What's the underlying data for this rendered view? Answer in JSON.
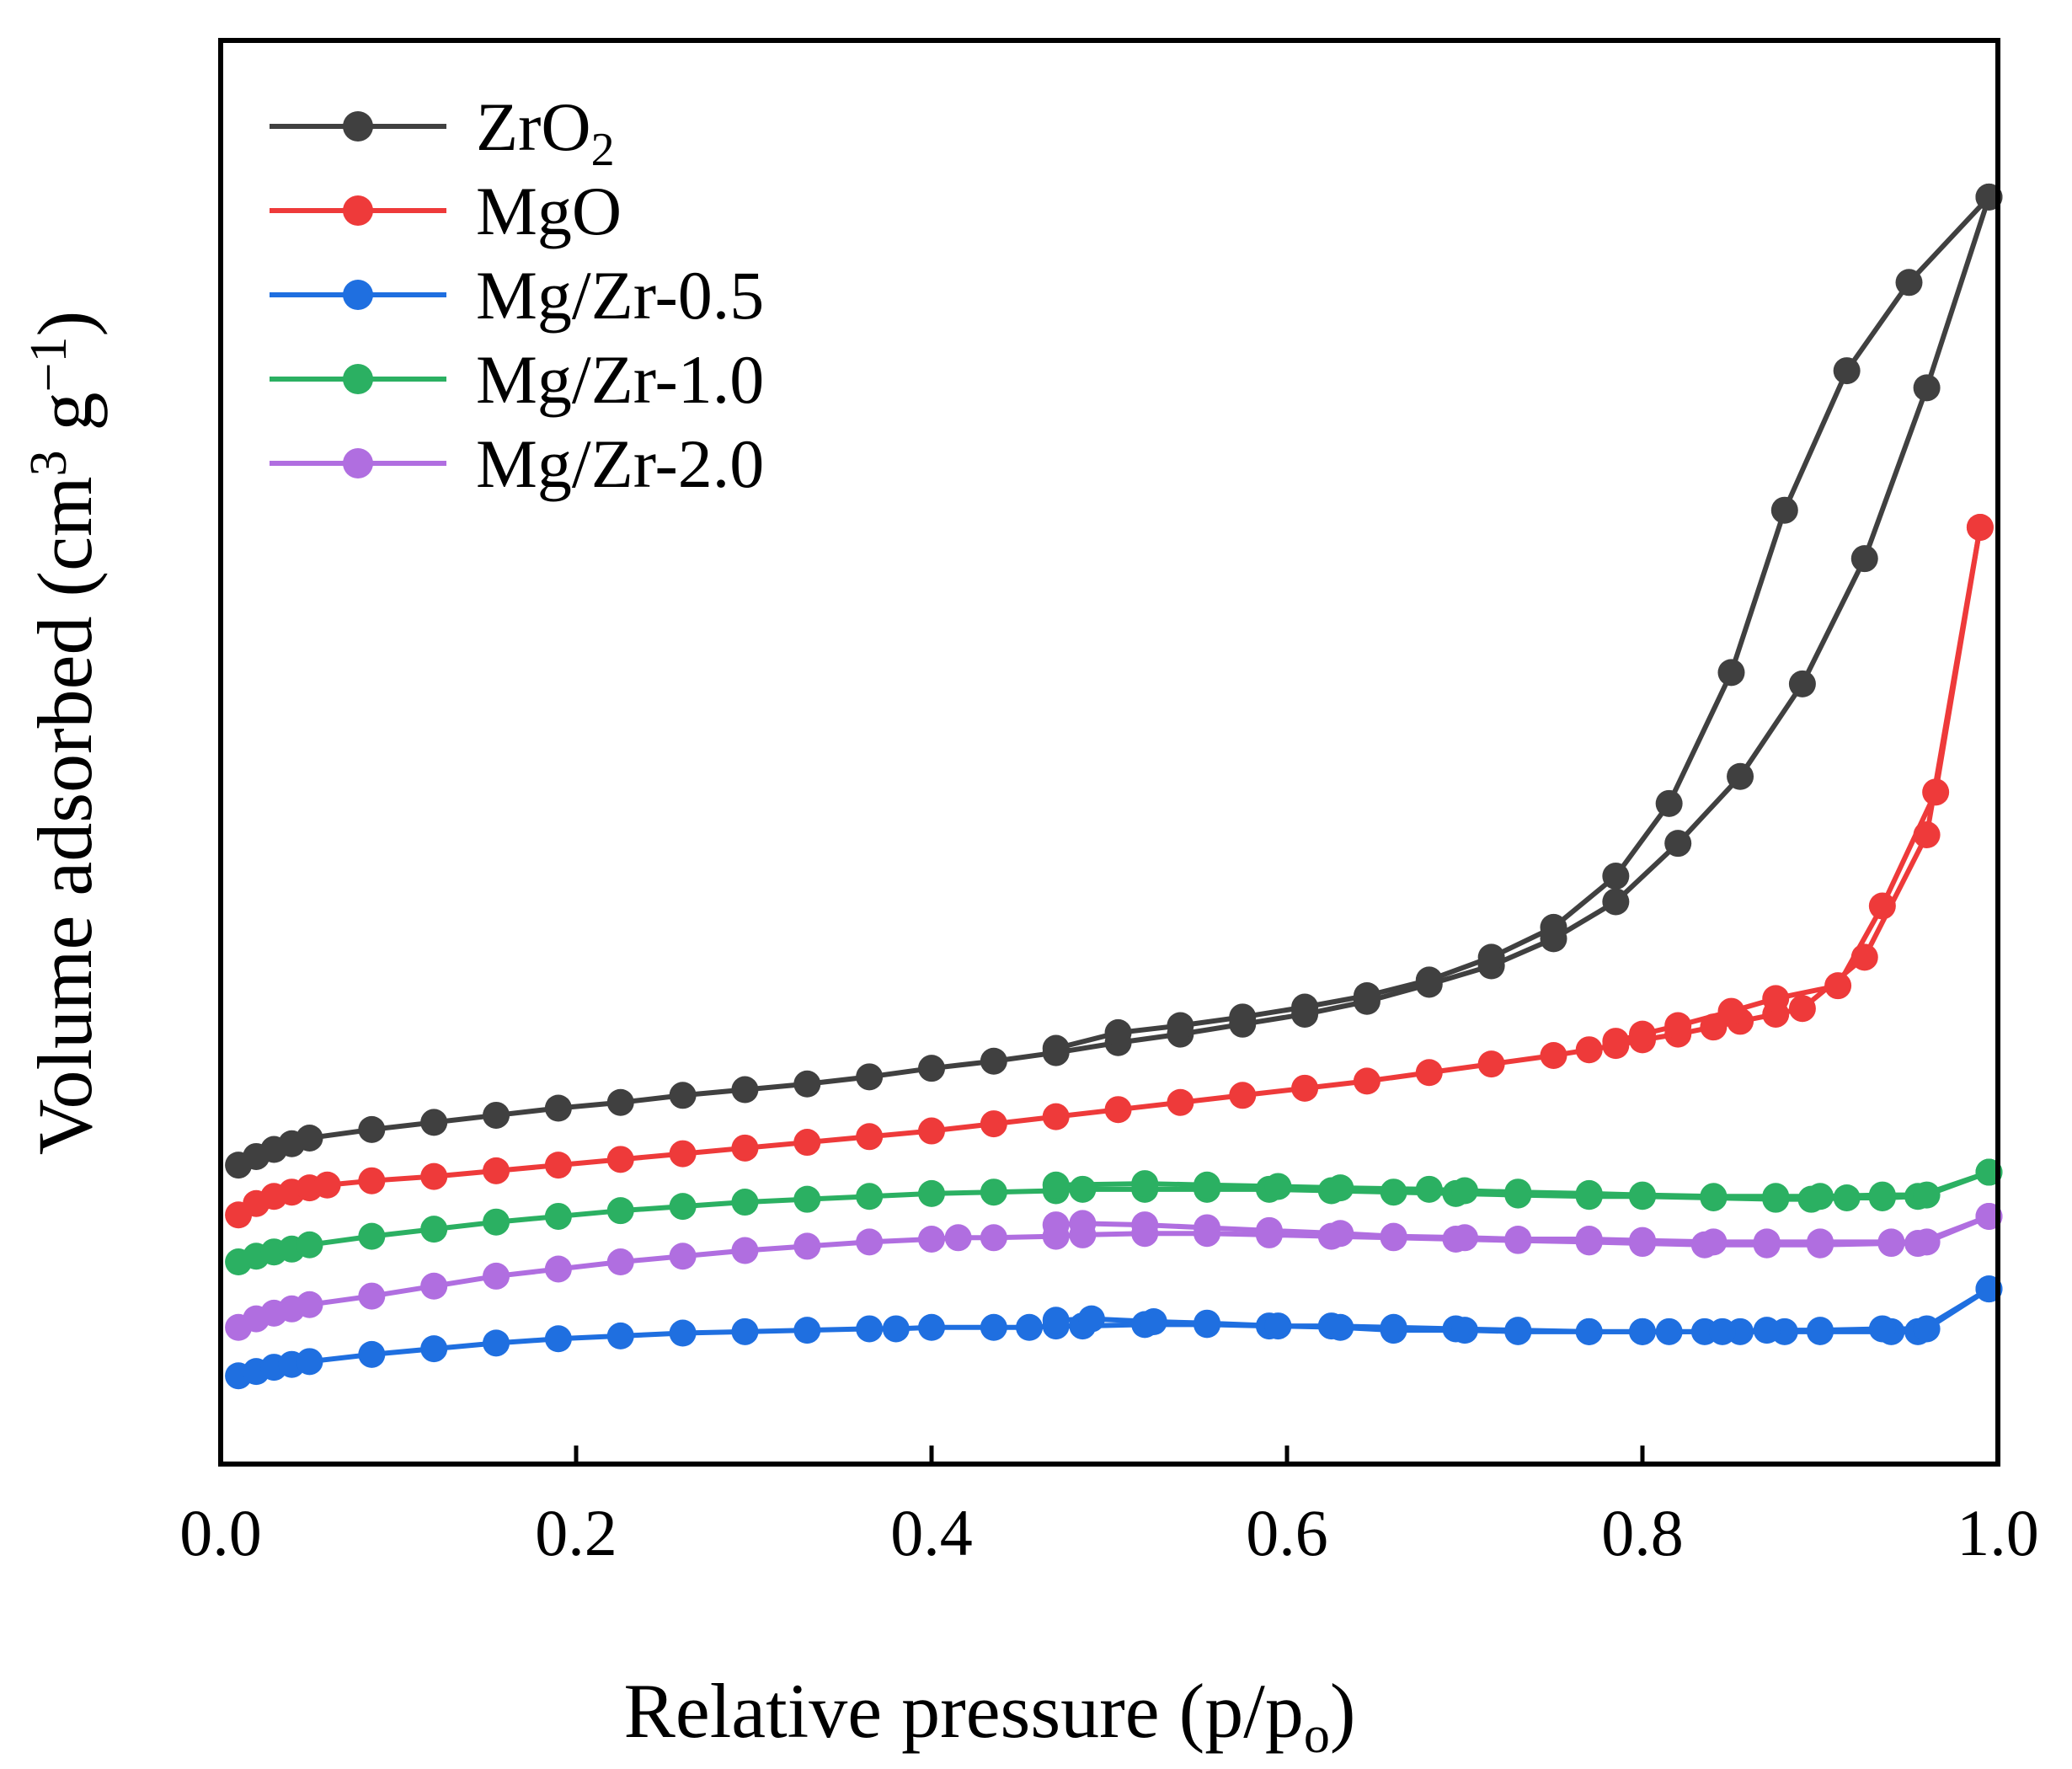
{
  "chart_data": {
    "type": "line",
    "title": "",
    "xlabel": "Relative pressure (p/p",
    "xlabel_sub": "o",
    "xlabel_close": ")",
    "ylabel": "Volume adsorbed (cm",
    "ylabel_sup": "3",
    "ylabel_mid": " g",
    "ylabel_sup2": "−1",
    "ylabel_close": ")",
    "xlim": [
      0.0,
      1.0
    ],
    "ylim": [
      0,
      100
    ],
    "xticks": [
      "0.0",
      "0.2",
      "0.4",
      "0.6",
      "0.8",
      "1.0"
    ],
    "xtick_values": [
      0.0,
      0.2,
      0.4,
      0.6,
      0.8,
      1.0
    ],
    "legend_position": "top-left",
    "series": [
      {
        "name": "ZrO",
        "name_sub": "2",
        "color": "#404040",
        "adsorption": {
          "x": [
            0.01,
            0.02,
            0.03,
            0.04,
            0.05,
            0.085,
            0.12,
            0.155,
            0.19,
            0.225,
            0.26,
            0.295,
            0.33,
            0.365,
            0.4,
            0.435,
            0.47,
            0.505,
            0.54,
            0.575,
            0.61,
            0.645,
            0.68,
            0.715,
            0.75,
            0.785,
            0.82,
            0.855,
            0.89,
            0.925,
            0.96,
            0.995
          ],
          "y": [
            21.0,
            21.6,
            22.1,
            22.5,
            22.9,
            23.5,
            24.0,
            24.5,
            25.0,
            25.4,
            25.9,
            26.3,
            26.7,
            27.2,
            27.8,
            28.3,
            28.9,
            29.6,
            30.2,
            30.9,
            31.6,
            32.5,
            33.7,
            35.0,
            36.9,
            39.5,
            43.6,
            48.3,
            54.8,
            63.6,
            75.6,
            89.0
          ]
        },
        "desorption": {
          "x": [
            0.995,
            0.95,
            0.915,
            0.88,
            0.85,
            0.815,
            0.785,
            0.75,
            0.715,
            0.68,
            0.645,
            0.61,
            0.575,
            0.54,
            0.505,
            0.47
          ],
          "y": [
            89.0,
            83.0,
            76.8,
            67.0,
            55.6,
            46.4,
            41.3,
            37.7,
            35.6,
            34.0,
            32.9,
            32.1,
            31.4,
            30.8,
            30.3,
            29.2
          ]
        }
      },
      {
        "name": "MgO",
        "color": "#ee3a3a",
        "adsorption": {
          "x": [
            0.01,
            0.02,
            0.03,
            0.04,
            0.05,
            0.06,
            0.085,
            0.12,
            0.155,
            0.19,
            0.225,
            0.26,
            0.295,
            0.33,
            0.365,
            0.4,
            0.435,
            0.47,
            0.505,
            0.54,
            0.575,
            0.61,
            0.645,
            0.68,
            0.715,
            0.75,
            0.77,
            0.785,
            0.8,
            0.82,
            0.84,
            0.855,
            0.875,
            0.89,
            0.925,
            0.96,
            0.99
          ],
          "y": [
            17.5,
            18.3,
            18.8,
            19.1,
            19.4,
            19.6,
            19.9,
            20.2,
            20.6,
            21.0,
            21.4,
            21.8,
            22.2,
            22.6,
            23.0,
            23.4,
            23.9,
            24.4,
            24.9,
            25.4,
            25.9,
            26.4,
            26.9,
            27.5,
            28.1,
            28.7,
            29.1,
            29.4,
            29.8,
            30.2,
            30.7,
            31.1,
            31.6,
            32.0,
            35.6,
            44.2,
            65.8
          ]
        },
        "desorption": {
          "x": [
            0.99,
            0.965,
            0.935,
            0.91,
            0.875,
            0.85,
            0.82,
            0.8,
            0.785
          ],
          "y": [
            65.8,
            47.2,
            39.2,
            33.6,
            32.7,
            31.8,
            30.8,
            30.2,
            29.7
          ]
        }
      },
      {
        "name": "Mg/Zr-0.5",
        "color": "#1f6fe0",
        "adsorption": {
          "x": [
            0.01,
            0.02,
            0.03,
            0.04,
            0.05,
            0.085,
            0.12,
            0.155,
            0.19,
            0.225,
            0.26,
            0.295,
            0.33,
            0.365,
            0.38,
            0.4,
            0.435,
            0.455,
            0.47,
            0.485,
            0.52,
            0.555,
            0.59,
            0.625,
            0.66,
            0.695,
            0.73,
            0.77,
            0.8,
            0.815,
            0.835,
            0.855,
            0.88,
            0.9,
            0.94,
            0.955,
            0.995
          ],
          "y": [
            6.2,
            6.5,
            6.8,
            7.0,
            7.2,
            7.7,
            8.1,
            8.5,
            8.8,
            9.0,
            9.2,
            9.3,
            9.4,
            9.5,
            9.5,
            9.6,
            9.6,
            9.6,
            9.7,
            9.7,
            9.8,
            9.8,
            9.7,
            9.7,
            9.6,
            9.5,
            9.4,
            9.3,
            9.3,
            9.3,
            9.3,
            9.3,
            9.3,
            9.3,
            9.3,
            9.3,
            12.3
          ]
        },
        "desorption": {
          "x": [
            0.995,
            0.96,
            0.935,
            0.9,
            0.87,
            0.845,
            0.8,
            0.77,
            0.73,
            0.7,
            0.66,
            0.63,
            0.595,
            0.555,
            0.525,
            0.49,
            0.47
          ],
          "y": [
            12.3,
            9.5,
            9.5,
            9.4,
            9.4,
            9.3,
            9.3,
            9.3,
            9.3,
            9.4,
            9.4,
            9.6,
            9.7,
            9.9,
            10.0,
            10.2,
            10.1
          ]
        }
      },
      {
        "name": "Mg/Zr-1.0",
        "color": "#2bb062",
        "adsorption": {
          "x": [
            0.01,
            0.02,
            0.03,
            0.04,
            0.05,
            0.085,
            0.12,
            0.155,
            0.19,
            0.225,
            0.26,
            0.295,
            0.33,
            0.365,
            0.4,
            0.435,
            0.47,
            0.485,
            0.52,
            0.555,
            0.59,
            0.625,
            0.66,
            0.695,
            0.73,
            0.77,
            0.8,
            0.84,
            0.875,
            0.895,
            0.915,
            0.935,
            0.955,
            0.995
          ],
          "y": [
            14.2,
            14.6,
            14.9,
            15.1,
            15.4,
            16.0,
            16.5,
            17.0,
            17.4,
            17.8,
            18.1,
            18.4,
            18.6,
            18.8,
            19.0,
            19.1,
            19.2,
            19.3,
            19.3,
            19.3,
            19.3,
            19.2,
            19.1,
            19.0,
            18.9,
            18.8,
            18.8,
            18.7,
            18.6,
            18.6,
            18.7,
            18.7,
            18.8,
            20.5
          ]
        },
        "desorption": {
          "x": [
            0.995,
            0.96,
            0.935,
            0.9,
            0.875,
            0.84,
            0.8,
            0.77,
            0.73,
            0.7,
            0.68,
            0.63,
            0.595,
            0.555,
            0.52,
            0.47
          ],
          "y": [
            20.5,
            18.9,
            18.9,
            18.8,
            18.8,
            18.8,
            18.9,
            19.0,
            19.1,
            19.2,
            19.3,
            19.4,
            19.5,
            19.6,
            19.7,
            19.6
          ]
        }
      },
      {
        "name": "Mg/Zr-2.0",
        "color": "#b06ee0",
        "adsorption": {
          "x": [
            0.01,
            0.02,
            0.03,
            0.04,
            0.05,
            0.085,
            0.12,
            0.155,
            0.19,
            0.225,
            0.26,
            0.295,
            0.33,
            0.365,
            0.4,
            0.415,
            0.435,
            0.47,
            0.485,
            0.52,
            0.555,
            0.59,
            0.625,
            0.66,
            0.695,
            0.73,
            0.77,
            0.8,
            0.835,
            0.87,
            0.9,
            0.94,
            0.955,
            0.995
          ],
          "y": [
            9.6,
            10.2,
            10.6,
            10.9,
            11.2,
            11.8,
            12.5,
            13.2,
            13.7,
            14.2,
            14.6,
            15.0,
            15.3,
            15.6,
            15.8,
            15.9,
            15.9,
            16.0,
            16.1,
            16.2,
            16.2,
            16.1,
            16.0,
            15.9,
            15.8,
            15.7,
            15.6,
            15.5,
            15.4,
            15.4,
            15.4,
            15.5,
            15.5,
            17.4
          ]
        },
        "desorption": {
          "x": [
            0.995,
            0.96,
            0.94,
            0.9,
            0.87,
            0.84,
            0.8,
            0.77,
            0.73,
            0.7,
            0.66,
            0.63,
            0.59,
            0.555,
            0.52,
            0.485,
            0.47
          ],
          "y": [
            17.4,
            15.6,
            15.6,
            15.6,
            15.6,
            15.6,
            15.7,
            15.8,
            15.8,
            15.9,
            16.0,
            16.2,
            16.4,
            16.6,
            16.8,
            16.9,
            16.8
          ]
        }
      }
    ]
  }
}
